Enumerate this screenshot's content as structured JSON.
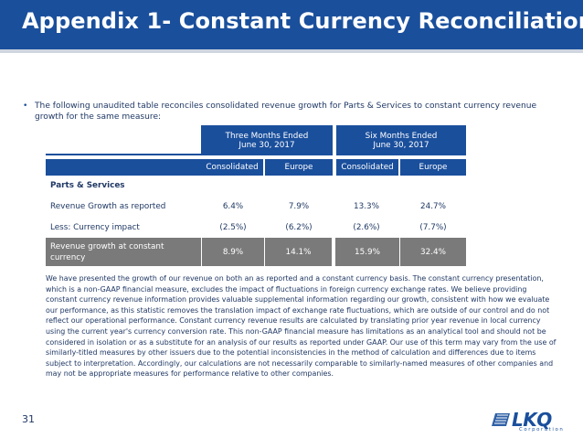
{
  "slide": {
    "title": "Appendix 1- Constant Currency Reconciliation",
    "intro_bullet": "•",
    "intro_text": "The following unaudited table reconciles consolidated revenue growth for Parts & Services to constant currency revenue growth for the same measure:",
    "page_number": "31"
  },
  "table": {
    "group_headers": [
      "Three Months Ended\nJune 30, 2017",
      "Six Months Ended\nJune 30, 2017"
    ],
    "group_headers_l1": [
      "Three Months Ended",
      "Six Months Ended"
    ],
    "group_headers_l2": [
      "June 30, 2017",
      "June 30, 2017"
    ],
    "columns": [
      "Consolidated",
      "Europe",
      "Consolidated",
      "Europe"
    ],
    "section_label": "Parts & Services",
    "rows": [
      {
        "label": "Revenue Growth as reported",
        "values": [
          "6.4%",
          "7.9%",
          "13.3%",
          "24.7%"
        ]
      },
      {
        "label": "Less: Currency impact",
        "values": [
          "(2.5%)",
          "(6.2%)",
          "(2.6%)",
          "(7.7%)"
        ]
      }
    ],
    "total_row": {
      "label_l1": "Revenue growth at constant",
      "label_l2": "currency",
      "values": [
        "8.9%",
        "14.1%",
        "15.9%",
        "32.4%"
      ]
    }
  },
  "paragraph": "We have presented the growth of our revenue on both an as reported and a constant currency basis. The constant currency presentation, which is a non-GAAP financial measure, excludes the impact of fluctuations in foreign currency exchange rates.  We believe providing constant currency revenue information provides valuable supplemental information regarding our growth, consistent with how we evaluate our performance, as this statistic removes the translation impact of exchange rate fluctuations, which are outside of our control and do not reflect our operational performance. Constant currency revenue results are calculated by translating prior year revenue in local currency using the current year's currency conversion rate. This non-GAAP financial measure has limitations as an analytical tool and should not be considered in isolation or as a substitute for an analysis of our results as reported under GAAP.  Our use of this term may vary from the use of similarly-titled measures by other issuers due to the potential inconsistencies in the method of calculation and differences due to items subject to interpretation. Accordingly, our calculations are not necessarily comparable to similarly-named measures of other companies and may not be appropriate measures for performance relative to other companies.",
  "logo": {
    "name": "LKQ",
    "tagline": "Corporation"
  },
  "colors": {
    "brand_blue": "#1a4f9c",
    "row_gray": "#7a7a7a"
  }
}
